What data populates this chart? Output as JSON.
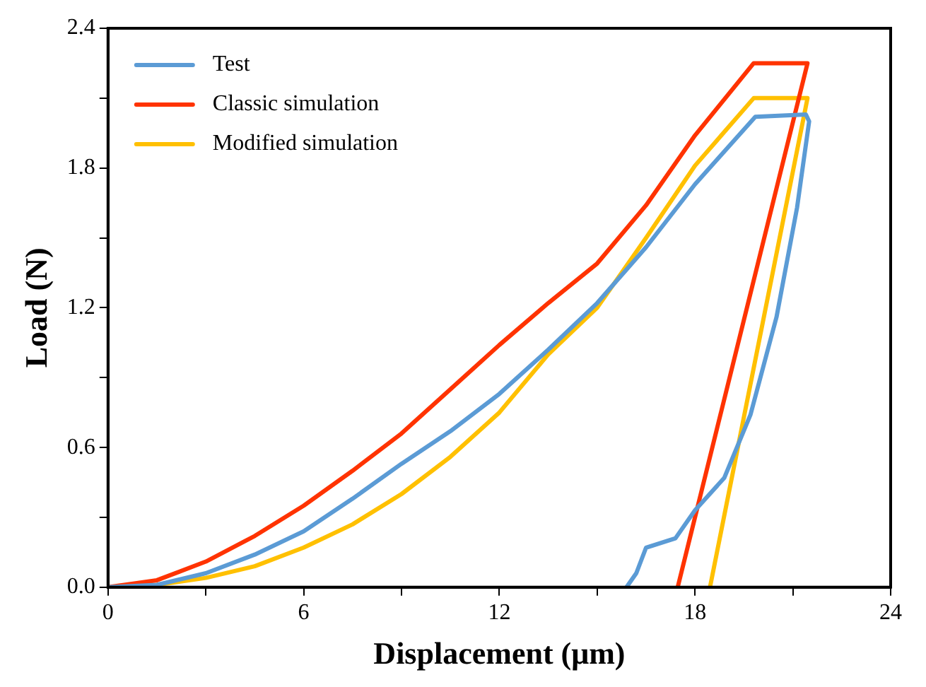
{
  "chart_data": {
    "type": "line",
    "xlabel": "Displacement (μm)",
    "ylabel": "Load (N)",
    "xlim": [
      0,
      24
    ],
    "ylim": [
      0,
      2.4
    ],
    "xticks": [
      0,
      {
        "value": 3,
        "label": null
      },
      6,
      {
        "value": 9,
        "label": null
      },
      12,
      {
        "value": 15,
        "label": null
      },
      18,
      {
        "value": 21,
        "label": null
      },
      24
    ],
    "yticks": [
      {
        "value": 0,
        "label": "0.0"
      },
      {
        "value": 0.3,
        "label": null
      },
      {
        "value": 0.6,
        "label": "0.6"
      },
      {
        "value": 0.9,
        "label": null
      },
      {
        "value": 1.2,
        "label": "1.2"
      },
      {
        "value": 1.5,
        "label": null
      },
      {
        "value": 1.8,
        "label": "1.8"
      },
      {
        "value": 2.1,
        "label": null
      },
      {
        "value": 2.4,
        "label": "2.4"
      }
    ],
    "grid": false,
    "legend": "top left",
    "marker": "none",
    "line_style": "solid",
    "series": [
      {
        "name": "Test",
        "color": "#5b9bd5",
        "x": [
          0,
          1.5,
          3,
          4.5,
          6,
          7.5,
          9,
          10.5,
          12,
          13.5,
          15,
          16.5,
          18,
          19.85,
          21.4,
          21.5,
          21.13,
          20.5,
          19.7,
          18.9,
          18,
          17.4,
          16.5,
          16.2,
          15.9
        ],
        "values": [
          0,
          0.01,
          0.06,
          0.14,
          0.24,
          0.38,
          0.53,
          0.67,
          0.83,
          1.02,
          1.22,
          1.46,
          1.73,
          2.02,
          2.03,
          2.0,
          1.63,
          1.16,
          0.74,
          0.47,
          0.33,
          0.21,
          0.17,
          0.06,
          0
        ]
      },
      {
        "name": "Classic simulation",
        "color": "#ff3300",
        "x": [
          0,
          1.5,
          3,
          4.5,
          6,
          7.5,
          9,
          10.5,
          12,
          13.5,
          15,
          16.5,
          18,
          19.8,
          21.45,
          17.47
        ],
        "values": [
          0,
          0.03,
          0.11,
          0.22,
          0.35,
          0.5,
          0.66,
          0.85,
          1.04,
          1.22,
          1.39,
          1.64,
          1.94,
          2.25,
          2.25,
          0
        ]
      },
      {
        "name": "Modified simulation",
        "color": "#ffc000",
        "x": [
          0,
          1.5,
          3,
          4.5,
          6,
          7.5,
          9,
          10.5,
          12,
          13.5,
          15,
          16.5,
          18,
          19.8,
          21.45,
          18.46
        ],
        "values": [
          0,
          0.01,
          0.04,
          0.09,
          0.17,
          0.27,
          0.4,
          0.56,
          0.75,
          1.0,
          1.2,
          1.5,
          1.81,
          2.1,
          2.1,
          0
        ]
      }
    ]
  }
}
